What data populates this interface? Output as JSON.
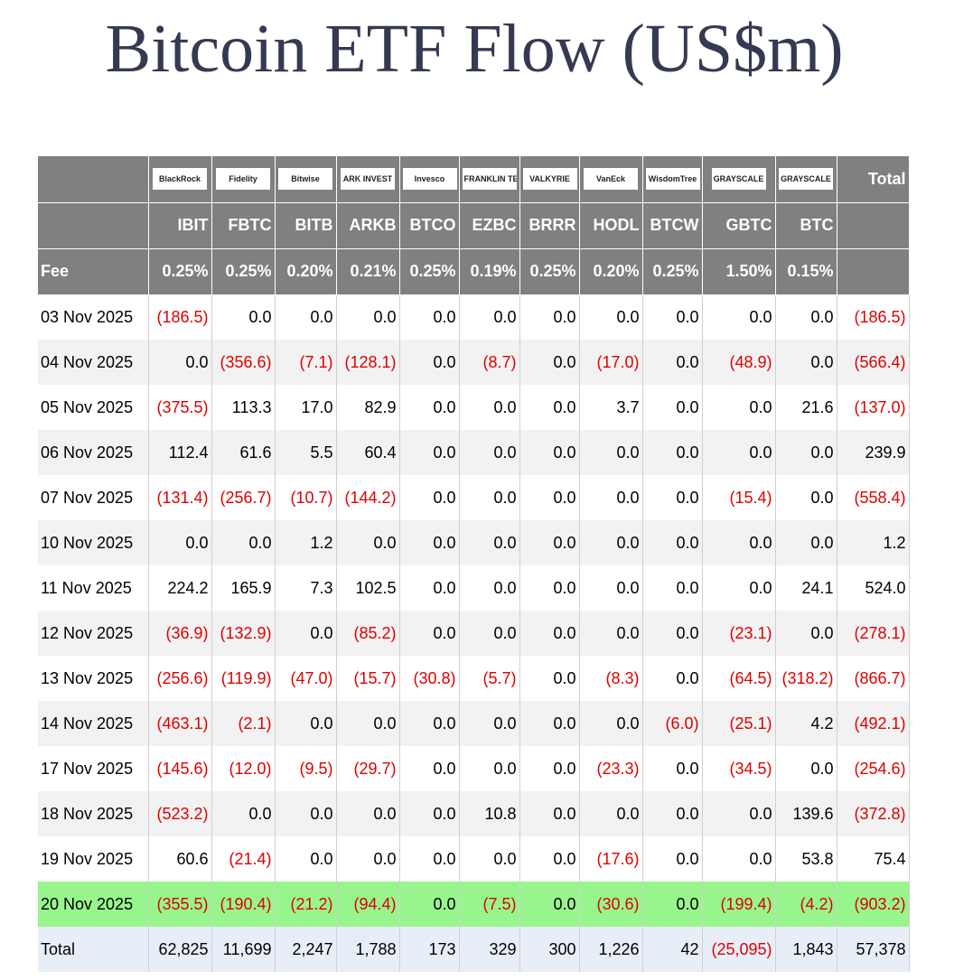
{
  "header": {
    "title": "Bitcoin ETF Flow (US$m)"
  },
  "table": {
    "logos": [
      "BlackRock",
      "Fidelity",
      "Bitwise",
      "ARK INVEST",
      "Invesco",
      "FRANKLIN TEMPLETON",
      "VALKYRIE",
      "VanEck",
      "WisdomTree",
      "GRAYSCALE",
      "GRAYSCALE"
    ],
    "total_header": "Total",
    "tickers": [
      "IBIT",
      "FBTC",
      "BITB",
      "ARKB",
      "BTCO",
      "EZBC",
      "BRRR",
      "HODL",
      "BTCW",
      "GBTC",
      "BTC"
    ],
    "fee_label": "Fee",
    "fees": [
      "0.25%",
      "0.25%",
      "0.20%",
      "0.21%",
      "0.25%",
      "0.19%",
      "0.25%",
      "0.20%",
      "0.25%",
      "1.50%",
      "0.15%"
    ],
    "highlight_row": 13,
    "rows": [
      [
        "03 Nov 2025",
        "(186.5)",
        "0.0",
        "0.0",
        "0.0",
        "0.0",
        "0.0",
        "0.0",
        "0.0",
        "0.0",
        "0.0",
        "0.0",
        "(186.5)"
      ],
      [
        "04 Nov 2025",
        "0.0",
        "(356.6)",
        "(7.1)",
        "(128.1)",
        "0.0",
        "(8.7)",
        "0.0",
        "(17.0)",
        "0.0",
        "(48.9)",
        "0.0",
        "(566.4)"
      ],
      [
        "05 Nov 2025",
        "(375.5)",
        "113.3",
        "17.0",
        "82.9",
        "0.0",
        "0.0",
        "0.0",
        "3.7",
        "0.0",
        "0.0",
        "21.6",
        "(137.0)"
      ],
      [
        "06 Nov 2025",
        "112.4",
        "61.6",
        "5.5",
        "60.4",
        "0.0",
        "0.0",
        "0.0",
        "0.0",
        "0.0",
        "0.0",
        "0.0",
        "239.9"
      ],
      [
        "07 Nov 2025",
        "(131.4)",
        "(256.7)",
        "(10.7)",
        "(144.2)",
        "0.0",
        "0.0",
        "0.0",
        "0.0",
        "0.0",
        "(15.4)",
        "0.0",
        "(558.4)"
      ],
      [
        "10 Nov 2025",
        "0.0",
        "0.0",
        "1.2",
        "0.0",
        "0.0",
        "0.0",
        "0.0",
        "0.0",
        "0.0",
        "0.0",
        "0.0",
        "1.2"
      ],
      [
        "11 Nov 2025",
        "224.2",
        "165.9",
        "7.3",
        "102.5",
        "0.0",
        "0.0",
        "0.0",
        "0.0",
        "0.0",
        "0.0",
        "24.1",
        "524.0"
      ],
      [
        "12 Nov 2025",
        "(36.9)",
        "(132.9)",
        "0.0",
        "(85.2)",
        "0.0",
        "0.0",
        "0.0",
        "0.0",
        "0.0",
        "(23.1)",
        "0.0",
        "(278.1)"
      ],
      [
        "13 Nov 2025",
        "(256.6)",
        "(119.9)",
        "(47.0)",
        "(15.7)",
        "(30.8)",
        "(5.7)",
        "0.0",
        "(8.3)",
        "0.0",
        "(64.5)",
        "(318.2)",
        "(866.7)"
      ],
      [
        "14 Nov 2025",
        "(463.1)",
        "(2.1)",
        "0.0",
        "0.0",
        "0.0",
        "0.0",
        "0.0",
        "0.0",
        "(6.0)",
        "(25.1)",
        "4.2",
        "(492.1)"
      ],
      [
        "17 Nov 2025",
        "(145.6)",
        "(12.0)",
        "(9.5)",
        "(29.7)",
        "0.0",
        "0.0",
        "0.0",
        "(23.3)",
        "0.0",
        "(34.5)",
        "0.0",
        "(254.6)"
      ],
      [
        "18 Nov 2025",
        "(523.2)",
        "0.0",
        "0.0",
        "0.0",
        "0.0",
        "10.8",
        "0.0",
        "0.0",
        "0.0",
        "0.0",
        "139.6",
        "(372.8)"
      ],
      [
        "19 Nov 2025",
        "60.6",
        "(21.4)",
        "0.0",
        "0.0",
        "0.0",
        "0.0",
        "0.0",
        "(17.6)",
        "0.0",
        "0.0",
        "53.8",
        "75.4"
      ],
      [
        "20 Nov 2025",
        "(355.5)",
        "(190.4)",
        "(21.2)",
        "(94.4)",
        "0.0",
        "(7.5)",
        "0.0",
        "(30.6)",
        "0.0",
        "(199.4)",
        "(4.2)",
        "(903.2)"
      ]
    ],
    "total_row": [
      "Total",
      "62,825",
      "11,699",
      "2,247",
      "1,788",
      "173",
      "329",
      "300",
      "1,226",
      "42",
      "(25,095)",
      "1,843",
      "57,378"
    ]
  }
}
